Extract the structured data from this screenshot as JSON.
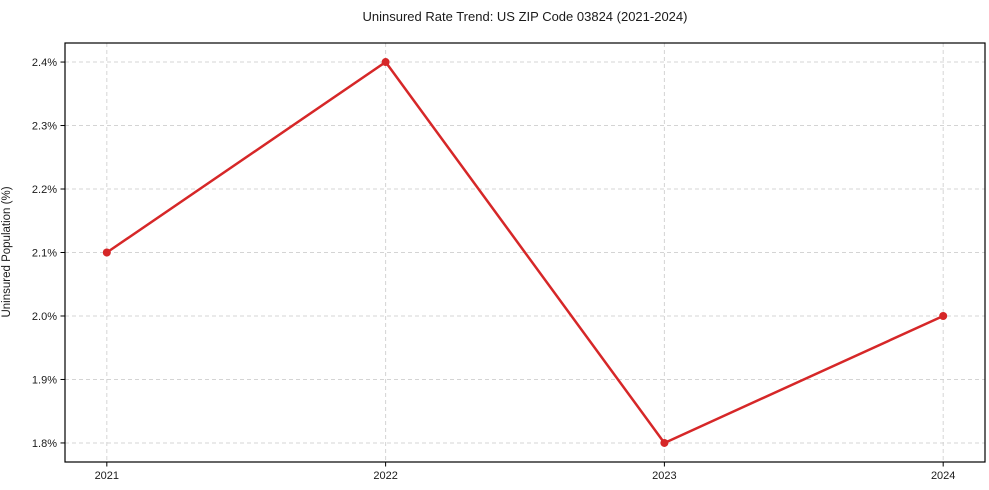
{
  "figure": {
    "title": "Uninsured Rate Trend: US ZIP Code 03824 (2021-2024)"
  },
  "chart_data": {
    "type": "line",
    "title": "Uninsured Rate Trend: US ZIP Code 03824 (2021-2024)",
    "xlabel": "",
    "ylabel": "Uninsured Population (%)",
    "x": [
      2021,
      2022,
      2023,
      2024
    ],
    "values": [
      2.1,
      2.4,
      1.8,
      2.0
    ],
    "xlim": [
      2020.85,
      2024.15
    ],
    "ylim": [
      1.77,
      2.43
    ],
    "xticks": {
      "values": [
        2021,
        2022,
        2023,
        2024
      ],
      "labels": [
        "2021",
        "2022",
        "2023",
        "2024"
      ]
    },
    "yticks": {
      "values": [
        1.8,
        1.9,
        2.0,
        2.1,
        2.2,
        2.3,
        2.4
      ],
      "labels": [
        "1.8%",
        "1.9%",
        "2.0%",
        "2.1%",
        "2.2%",
        "2.3%",
        "2.4%"
      ]
    },
    "grid": true,
    "legend": null,
    "line_color": "#d62728",
    "marker_color": "#d62728",
    "grid_color": "#d0d0d0",
    "spine_color": "#000000",
    "text_color": "#1a1a1a"
  }
}
